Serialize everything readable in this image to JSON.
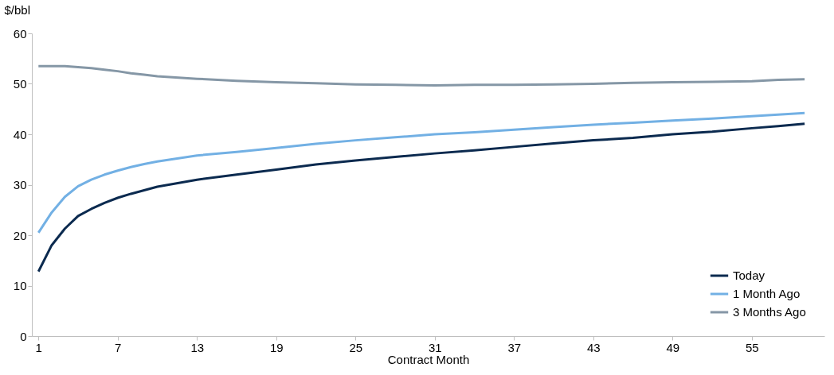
{
  "chart_data": {
    "type": "line",
    "xlabel": "Contract Month",
    "ylabel": "$/bbl",
    "x": [
      1,
      2,
      3,
      4,
      5,
      6,
      7,
      8,
      9,
      10,
      13,
      16,
      19,
      22,
      25,
      28,
      31,
      34,
      37,
      40,
      43,
      46,
      49,
      52,
      55,
      57,
      59
    ],
    "series": [
      {
        "name": "Today",
        "color": "#0b2a4f",
        "values": [
          12.8,
          18,
          21.3,
          23.8,
          25.2,
          26.4,
          27.4,
          28.2,
          28.9,
          29.6,
          31,
          32,
          33,
          34,
          34.8,
          35.5,
          36.2,
          36.8,
          37.5,
          38.2,
          38.8,
          39.3,
          40,
          40.5,
          41.2,
          41.6,
          42.1
        ]
      },
      {
        "name": "1 Month Ago",
        "color": "#72b0e4",
        "values": [
          20.5,
          24.5,
          27.6,
          29.7,
          31,
          32,
          32.8,
          33.5,
          34.1,
          34.6,
          35.8,
          36.5,
          37.3,
          38.1,
          38.8,
          39.4,
          40,
          40.4,
          40.9,
          41.4,
          41.9,
          42.3,
          42.7,
          43.1,
          43.6,
          43.9,
          44.2
        ]
      },
      {
        "name": "3 Months Ago",
        "color": "#8597a6",
        "values": [
          53.5,
          53.5,
          53.5,
          53.3,
          53.1,
          52.8,
          52.5,
          52.1,
          51.8,
          51.5,
          51,
          50.6,
          50.3,
          50.1,
          49.9,
          49.8,
          49.7,
          49.8,
          49.8,
          49.9,
          50,
          50.2,
          50.3,
          50.4,
          50.5,
          50.8,
          50.9
        ]
      }
    ],
    "xlim": [
      0.5,
      60.5
    ],
    "xticks": [
      1,
      7,
      13,
      19,
      25,
      31,
      37,
      43,
      49,
      55
    ],
    "ylim": [
      0,
      60
    ],
    "yticks": [
      0,
      10,
      20,
      30,
      40,
      50,
      60
    ],
    "grid": false,
    "legend": "bottom right",
    "line_style": "solid",
    "marker": "none"
  }
}
